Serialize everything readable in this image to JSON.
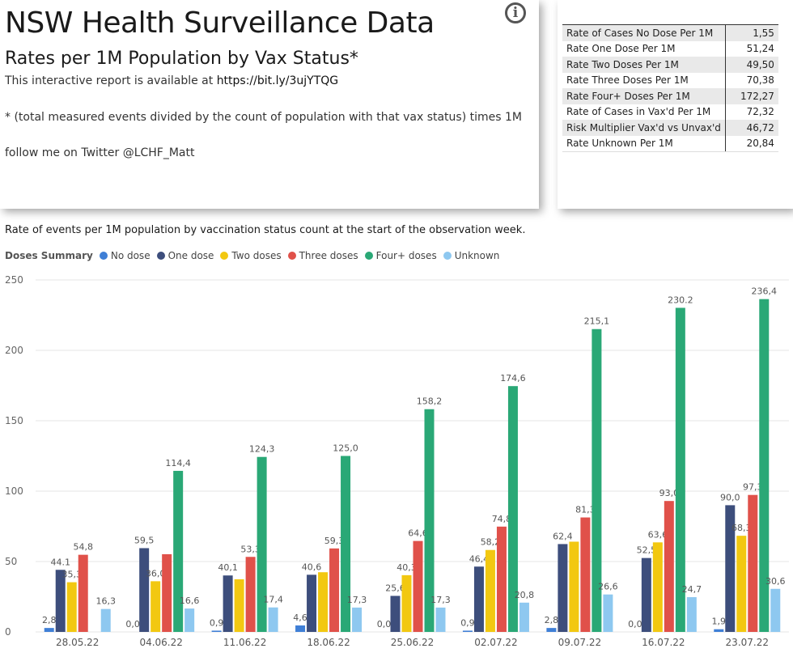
{
  "header": {
    "title": "NSW Health Surveillance Data",
    "subtitle": "Rates per 1M Population by Vax Status*",
    "report_prefix": "This interactive report is available at ",
    "report_link": "https://bit.ly/3ujYTQG",
    "footnote": "* (total measured events divided by the count of population with that vax status) times 1M",
    "twitter": "follow me on Twitter @LCHF_Matt",
    "info_icon": "i"
  },
  "metrics": [
    {
      "label": "Rate of Cases No Dose Per 1M",
      "value": "1,55"
    },
    {
      "label": "Rate One Dose Per 1M",
      "value": "51,24"
    },
    {
      "label": "Rate Two Doses Per 1M",
      "value": "49,50"
    },
    {
      "label": "Rate Three Doses Per 1M",
      "value": "70,38"
    },
    {
      "label": "Rate Four+ Doses Per 1M",
      "value": "172,27"
    },
    {
      "label": "Rate of Cases in Vax'd Per 1M",
      "value": "72,32"
    },
    {
      "label": "Risk Multiplier Vax'd vs Unvax'd",
      "value": "46,72"
    },
    {
      "label": "Rate Unknown Per 1M",
      "value": "20,84"
    }
  ],
  "chart_data": {
    "type": "bar",
    "title": "Rate of events per 1M population by vaccination status count at the start of the observation week.",
    "legend_title": "Doses Summary",
    "categories": [
      "28.05.22",
      "04.06.22",
      "11.06.22",
      "18.06.22",
      "25.06.22",
      "02.07.22",
      "09.07.22",
      "16.07.22",
      "23.07.22"
    ],
    "ylim": [
      0,
      250
    ],
    "yticks": [
      0,
      50,
      100,
      150,
      200,
      250
    ],
    "series": [
      {
        "name": "No dose",
        "color": "#3f7fd6",
        "values": [
          2.8,
          0.0,
          0.9,
          4.6,
          0.0,
          0.9,
          2.8,
          0.0,
          1.9
        ],
        "labels": [
          "2,8",
          "0,0",
          "0,9",
          "4,6",
          "0,0",
          "0,9",
          "2,8",
          "0,0",
          "1,9"
        ]
      },
      {
        "name": "One dose",
        "color": "#3d4e7c",
        "values": [
          44.1,
          59.5,
          40.1,
          40.6,
          25.6,
          46.4,
          62.4,
          52.5,
          90.0
        ],
        "labels": [
          "44.1",
          "59,5",
          "40,1",
          "40,6",
          "25,6",
          "46,4",
          "62,4",
          "52,5",
          "90,0"
        ]
      },
      {
        "name": "Two doses",
        "color": "#f2c811",
        "values": [
          35.3,
          36.0,
          37.4,
          42.4,
          40.3,
          58.2,
          64.1,
          63.6,
          68.3
        ],
        "labels": [
          "35,3",
          "36,0",
          "",
          "",
          "40,3",
          "58,2",
          "",
          "63,6",
          "68,3"
        ]
      },
      {
        "name": "Three doses",
        "color": "#e0514a",
        "values": [
          54.8,
          55.2,
          53.3,
          59.3,
          64.6,
          74.8,
          81.3,
          93.0,
          97.3
        ],
        "labels": [
          "54,8",
          "",
          "53,3",
          "59,3",
          "64,6",
          "74,8",
          "81,3",
          "93,0",
          "97,3"
        ]
      },
      {
        "name": "Four+ doses",
        "color": "#2aa876",
        "values": [
          null,
          114.4,
          124.3,
          125.0,
          158.2,
          174.6,
          215.1,
          230.2,
          236.4
        ],
        "labels": [
          "",
          "114,4",
          "124,3",
          "125,0",
          "158,2",
          "174,6",
          "215,1",
          "230.2",
          "236,4"
        ]
      },
      {
        "name": "Unknown",
        "color": "#8ec8f0",
        "values": [
          16.3,
          16.6,
          17.4,
          17.3,
          17.3,
          20.8,
          26.6,
          24.7,
          30.6
        ],
        "labels": [
          "16,3",
          "16,6",
          "17,4",
          "17,3",
          "17,3",
          "20,8",
          "26,6",
          "24,7",
          "30,6"
        ]
      }
    ],
    "xlabel": "",
    "ylabel": "",
    "grid": true,
    "legend": "top-left"
  }
}
